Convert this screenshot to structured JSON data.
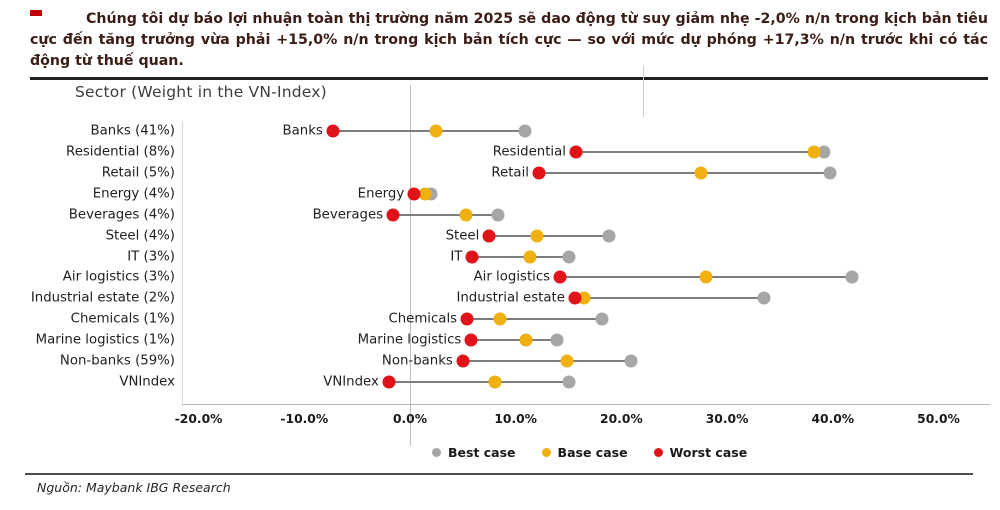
{
  "header": {
    "marker_color": "#c00000",
    "text": "Chúng tôi dự báo lợi nhuận toàn thị trường năm 2025 sẽ dao động từ suy giảm nhẹ -2,0% n/n trong kịch bản tiêu cực đến tăng trưởng vừa phải +15,0% n/n trong kịch bản tích cực — so với mức dự phóng +17,3% n/n trước khi có tác động từ thuế quan."
  },
  "chart_data": {
    "type": "scatter",
    "subtype": "dumbbell-dot-plot",
    "title": "Sector (Weight in the VN-Index)",
    "xlabel": "",
    "ylabel": "Sector (Weight in the VN-Index)",
    "unit": "% YoY profit growth",
    "xlim": [
      -20,
      50
    ],
    "x_ticks": [
      "-20.0%",
      "-10.0%",
      "0.0%",
      "10.0%",
      "20.0%",
      "30.0%",
      "40.0%",
      "50.0%"
    ],
    "x_tick_values": [
      -20,
      -10,
      0,
      10,
      20,
      30,
      40,
      50
    ],
    "grid": "zero-line-only",
    "legend_position": "bottom",
    "legend": [
      {
        "name": "Best case",
        "color": "#a6a6a6"
      },
      {
        "name": "Base case",
        "color": "#f0b010"
      },
      {
        "name": "Worst case",
        "color": "#e0121a"
      }
    ],
    "rows": [
      {
        "axis_label": "Banks (41%)",
        "label": "Banks",
        "worst": -7.3,
        "base": 2.5,
        "best": 10.9
      },
      {
        "axis_label": "Residential (8%)",
        "label": "Residential",
        "worst": 15.7,
        "base": 38.2,
        "best": 39.2
      },
      {
        "axis_label": "Retail (5%)",
        "label": "Retail",
        "worst": 12.2,
        "base": 27.5,
        "best": 39.7
      },
      {
        "axis_label": "Energy (4%)",
        "label": "Energy",
        "worst": 0.4,
        "base": 1.4,
        "best": 2.0
      },
      {
        "axis_label": "Beverages (4%)",
        "label": "Beverages",
        "worst": -1.6,
        "base": 5.3,
        "best": 8.3
      },
      {
        "axis_label": "Steel (4%)",
        "label": "Steel",
        "worst": 7.5,
        "base": 12.0,
        "best": 18.8
      },
      {
        "axis_label": "IT (3%)",
        "label": "IT",
        "worst": 5.9,
        "base": 11.4,
        "best": 15.0
      },
      {
        "axis_label": "Air logistics (3%)",
        "label": "Air logistics",
        "worst": 14.2,
        "base": 28.0,
        "best": 41.8
      },
      {
        "axis_label": "Industrial estate (2%)",
        "label": "Industrial estate",
        "worst": 15.6,
        "base": 16.5,
        "best": 33.5
      },
      {
        "axis_label": "Chemicals (1%)",
        "label": "Chemicals",
        "worst": 5.4,
        "base": 8.5,
        "best": 18.2
      },
      {
        "axis_label": "Marine logistics (1%)",
        "label": "Marine logistics",
        "worst": 5.8,
        "base": 11.0,
        "best": 13.9
      },
      {
        "axis_label": "Non-banks (59%)",
        "label": "Non-banks",
        "worst": 5.0,
        "base": 14.9,
        "best": 20.9
      },
      {
        "axis_label": "VNIndex",
        "label": "VNIndex",
        "worst": -2.0,
        "base": 8.0,
        "best": 15.0
      }
    ]
  },
  "footer": {
    "source": "Nguồn: Maybank IBG Research"
  }
}
